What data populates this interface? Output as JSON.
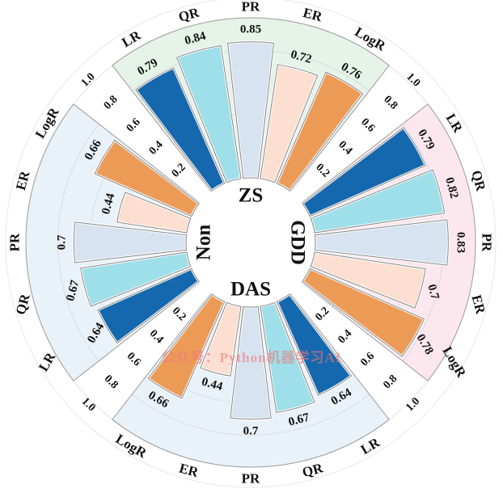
{
  "watermark": {
    "text": "公众号：Python机器学习AI"
  },
  "colors": {
    "bar_stroke": "#848484",
    "bar_halo": "#ffffff",
    "sector_stroke": "#9c9c9c",
    "grid": "#c5ccd2",
    "outer_ring": "#d6d6d6",
    "hole_fill": "#ffffff",
    "text": "#111111"
  },
  "chart_data": {
    "type": "bar",
    "layout": "polar-quadrant-radial-bars",
    "title": "",
    "methods": [
      "LR",
      "QR",
      "PR",
      "ER",
      "LogR"
    ],
    "method_colors": {
      "LR": "#1568ad",
      "QR": "#9edfe9",
      "PR": "#d7e3f0",
      "ER": "#fcdfd1",
      "LogR": "#ec9b57"
    },
    "radial_ticks": [
      "0.2",
      "0.4",
      "0.6",
      "0.8",
      "1.0"
    ],
    "radial_tick_values": [
      0.2,
      0.4,
      0.6,
      0.8,
      1.0
    ],
    "ylim": [
      0,
      1.0
    ],
    "tick_spokes": [
      {
        "angle": 45,
        "rotation": 45
      },
      {
        "angle": 135,
        "rotation": -45
      },
      {
        "angle": 225,
        "rotation": 45
      },
      {
        "angle": 315,
        "rotation": -45
      }
    ],
    "quadrants": [
      {
        "label": "ZS",
        "center_angle": 90,
        "bg_color": "#e5f3e8",
        "values": [
          0.79,
          0.84,
          0.85,
          0.72,
          0.76
        ]
      },
      {
        "label": "GDD",
        "center_angle": 0,
        "bg_color": "#fce7ef",
        "values": [
          0.79,
          0.82,
          0.83,
          0.7,
          0.78
        ]
      },
      {
        "label": "DAS",
        "center_angle": -90,
        "bg_color": "#eaf2f9",
        "values": [
          0.64,
          0.67,
          0.7,
          0.44,
          0.66
        ]
      },
      {
        "label": "Non",
        "center_angle": 180,
        "bg_color": "#eaf2f9",
        "values": [
          0.64,
          0.67,
          0.7,
          0.44,
          0.66
        ]
      }
    ]
  }
}
